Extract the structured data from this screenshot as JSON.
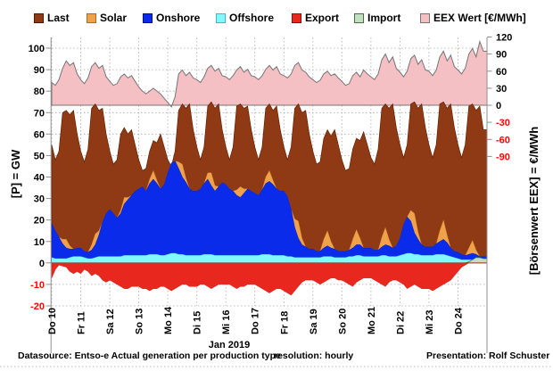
{
  "legend": {
    "items": [
      {
        "label": "Last",
        "color": "#8F3A14",
        "border": "#4e1a05"
      },
      {
        "label": "Solar",
        "color": "#F0A24A",
        "border": "#b06a1a"
      },
      {
        "label": "Onshore",
        "color": "#0B2BEA",
        "border": "#000d8a"
      },
      {
        "label": "Offshore",
        "color": "#80F8FC",
        "border": "#3fb9c9"
      },
      {
        "label": "Export",
        "color": "#E8281E",
        "border": "#8f0f08"
      },
      {
        "label": "Import",
        "color": "#C2DEC3",
        "border": "#46703F"
      },
      {
        "label": "EEX Wert [€/MWh]",
        "color": "#F5C0C4",
        "border": "#757575"
      }
    ]
  },
  "footer": {
    "datasource": "Datasource: Entso-e  Actual generation per production type",
    "month": "Jan 2019",
    "resolution": "resolution: hourly",
    "presentation": "Presentation:  Rolf Schuster"
  },
  "colors": {
    "grid": "#ABABAB",
    "axis": "#8F8F8F",
    "negative_tick": "#FF0000",
    "text": "#000000"
  },
  "chart_data": {
    "type": "area",
    "title": "",
    "x_step_hours": 3,
    "points_per_day": 8,
    "day_labels": [
      "Do 10",
      "Fr 11",
      "Sa 12",
      "So 13",
      "Mo 14",
      "Di 15",
      "Mi 16",
      "Do 17",
      "Fr 18",
      "Sa 19",
      "So 20",
      "Mo 21",
      "Di 22",
      "Mi 23",
      "Do 24"
    ],
    "x_caption": "Jan 2019",
    "left_axis": {
      "label": "[P] = GW",
      "min": -20,
      "max": 100,
      "tick_step": 10
    },
    "right_axis": {
      "label": "[Börsenwert EEX] = €/MWh",
      "min": -90,
      "max": 120,
      "ticks": [
        120,
        90,
        60,
        30,
        0,
        -30,
        -60,
        -90
      ]
    },
    "grid": true,
    "legend_position": "top",
    "stacking_note": "Offshore+Onshore+Solar stacked from 0 in front of Last; Export negative below 0; Import positive; EEX Wert plotted on right axis from 0 baseline",
    "series": [
      {
        "name": "Last",
        "axis": "left",
        "unit": "GW",
        "values": [
          55,
          48,
          52,
          70,
          71,
          69,
          71,
          60,
          52,
          47,
          53,
          72,
          74,
          71,
          72,
          60,
          52,
          46,
          48,
          60,
          63,
          60,
          62,
          55,
          48,
          43,
          44,
          52,
          57,
          56,
          60,
          54,
          48,
          45,
          52,
          71,
          74,
          72,
          74,
          62,
          54,
          48,
          54,
          73,
          75,
          72,
          74,
          62,
          54,
          48,
          54,
          73,
          74,
          72,
          73,
          62,
          54,
          48,
          54,
          72,
          74,
          71,
          73,
          62,
          54,
          48,
          54,
          72,
          74,
          70,
          71,
          60,
          52,
          46,
          47,
          58,
          62,
          59,
          62,
          55,
          48,
          43,
          44,
          53,
          58,
          57,
          61,
          55,
          49,
          46,
          53,
          72,
          74,
          72,
          74,
          63,
          55,
          49,
          55,
          74,
          75,
          72,
          74,
          63,
          55,
          49,
          55,
          74,
          75,
          72,
          74,
          63,
          55,
          49,
          55,
          73,
          74,
          71,
          73,
          62
        ]
      },
      {
        "name": "Onshore",
        "axis": "left",
        "unit": "GW",
        "values": [
          16,
          13,
          10,
          7,
          5,
          4,
          3.5,
          4,
          4,
          3,
          3,
          4,
          6,
          10,
          16,
          20,
          22,
          20,
          18,
          20,
          24,
          26,
          28,
          30,
          31,
          32,
          30,
          33,
          35,
          33,
          31,
          33,
          38,
          42,
          43,
          40,
          36,
          34,
          31,
          30,
          30,
          31,
          33,
          35,
          32,
          30,
          32,
          34,
          33,
          31,
          30,
          28,
          27,
          29,
          31,
          30,
          29,
          28,
          30,
          33,
          34,
          33,
          31,
          30,
          30,
          28,
          22,
          14,
          9,
          6,
          5,
          4,
          4,
          3,
          3,
          4,
          5,
          4,
          4,
          3,
          3,
          3,
          3,
          4,
          5,
          5,
          4,
          4,
          4,
          3,
          3,
          4,
          5,
          5,
          4,
          5,
          8,
          14,
          17,
          15,
          10,
          7,
          5,
          4,
          4,
          4,
          5,
          6,
          7,
          6,
          4,
          3,
          3,
          2.5,
          2,
          2.5,
          3,
          2.5,
          2,
          2
        ]
      },
      {
        "name": "Offshore",
        "axis": "left",
        "unit": "GW",
        "values": [
          2.5,
          2,
          2,
          2,
          2,
          2.5,
          3,
          3,
          3,
          2.5,
          2,
          2,
          2.5,
          3,
          3,
          3,
          3,
          3,
          3,
          3,
          3.5,
          3.5,
          3.5,
          3.5,
          3.5,
          3.5,
          3.5,
          4,
          4,
          4,
          3.5,
          3.5,
          4,
          4.5,
          4.5,
          4,
          4,
          3.5,
          3.5,
          3.5,
          3.5,
          3.5,
          4,
          4,
          4,
          3.5,
          3.5,
          3.5,
          3.5,
          3.5,
          3.5,
          3.5,
          3.5,
          3.5,
          3.5,
          3.5,
          3.5,
          3.5,
          4,
          4,
          4,
          3.5,
          3.5,
          3.5,
          3.5,
          3,
          3,
          2.5,
          2.5,
          2.5,
          2.5,
          2.5,
          2.5,
          2.5,
          2.5,
          3,
          3,
          3,
          2.5,
          2.5,
          2.5,
          2.5,
          3,
          3,
          3.5,
          3.5,
          3,
          3,
          3,
          3,
          3,
          3.5,
          3.5,
          3,
          3,
          3,
          3.5,
          4,
          4.5,
          4.5,
          4,
          4,
          3.5,
          3.5,
          3.5,
          3.5,
          4,
          4,
          4,
          3.5,
          3,
          2.5,
          2,
          1.5,
          1.5,
          1.5,
          1.5,
          1.5,
          1,
          1
        ]
      },
      {
        "name": "Solar",
        "axis": "left",
        "unit": "GW",
        "values": [
          0,
          0,
          0,
          2,
          4,
          1.5,
          0,
          0,
          0,
          0,
          0,
          2.5,
          5,
          2,
          0,
          0,
          0,
          0,
          0,
          1.5,
          3,
          1,
          0,
          0,
          0,
          0,
          0,
          2,
          4,
          1.5,
          0,
          0,
          0,
          0,
          0,
          3,
          6,
          2,
          0,
          0,
          0,
          0,
          0,
          3,
          6,
          2.5,
          0,
          0,
          0,
          0,
          0,
          2.5,
          5,
          2,
          0,
          0,
          0,
          0,
          0,
          3,
          5,
          2,
          0,
          0,
          0,
          0,
          0,
          4,
          8,
          3,
          0,
          0,
          0,
          0,
          0,
          4,
          7,
          3,
          0,
          0,
          0,
          0,
          0,
          4,
          7,
          3,
          0,
          0,
          0,
          0,
          0,
          4.5,
          8,
          3,
          0,
          0,
          0,
          0,
          0,
          5,
          9,
          3.5,
          0,
          0,
          0,
          0,
          0,
          5,
          9,
          3.5,
          0,
          0,
          0,
          0,
          0,
          3,
          6,
          2,
          0,
          0
        ]
      },
      {
        "name": "Export",
        "axis": "left",
        "unit": "GW",
        "values": [
          -7,
          -3,
          -1,
          -1.5,
          -2,
          -4,
          -5,
          -4,
          -5,
          -3,
          -4,
          -6,
          -5,
          -6,
          -8,
          -9,
          -8,
          -9,
          -10,
          -11,
          -12,
          -12,
          -11,
          -11,
          -11,
          -12,
          -12,
          -13,
          -12,
          -12,
          -11,
          -11,
          -12,
          -13,
          -12,
          -11,
          -10,
          -10,
          -11,
          -11,
          -11,
          -10,
          -10,
          -11,
          -12,
          -11,
          -10,
          -10,
          -10,
          -10,
          -11,
          -12,
          -11,
          -11,
          -10,
          -10,
          -10,
          -11,
          -12,
          -13,
          -14,
          -13,
          -12,
          -12,
          -13,
          -14,
          -15,
          -13,
          -11,
          -9,
          -8,
          -8,
          -8,
          -9,
          -10,
          -9,
          -8,
          -7,
          -7,
          -8,
          -8,
          -9,
          -10,
          -11,
          -9,
          -8,
          -7,
          -7,
          -7,
          -8,
          -9,
          -10,
          -11,
          -9,
          -8,
          -8,
          -9,
          -10,
          -12,
          -11,
          -10,
          -11,
          -12,
          -12,
          -12,
          -13,
          -12,
          -11,
          -10,
          -9,
          -8,
          -6,
          -4,
          -2,
          -1,
          0,
          0,
          0,
          0,
          0
        ]
      },
      {
        "name": "Import",
        "axis": "left",
        "unit": "GW",
        "values": [
          0,
          0,
          0,
          0,
          0,
          0,
          0,
          0,
          0,
          0,
          0,
          0,
          0,
          0,
          0,
          0,
          0,
          0,
          0,
          0,
          0,
          0,
          0,
          0,
          0,
          0,
          0,
          0,
          0,
          0,
          0,
          0,
          0,
          0,
          0,
          0,
          0,
          0,
          0,
          0,
          0,
          0,
          0,
          0,
          0,
          0,
          0,
          0,
          0,
          0,
          0,
          0,
          0,
          0,
          0,
          0,
          0,
          0,
          0,
          0,
          0,
          0,
          0,
          0,
          0,
          0,
          0,
          0,
          0,
          0,
          0,
          0,
          0,
          0,
          0,
          0,
          0,
          0,
          0,
          0,
          0,
          0,
          0,
          0,
          0,
          0,
          0,
          0,
          0,
          0,
          0,
          0,
          0,
          0,
          0,
          0,
          0,
          0,
          0,
          0,
          0,
          0,
          0,
          0,
          0,
          0,
          0,
          0,
          0,
          0,
          0,
          0,
          0,
          0,
          0,
          0.5,
          1.5,
          2.5,
          2.5,
          2
        ]
      },
      {
        "name": "EEX Wert",
        "axis": "right",
        "unit": "€/MWh",
        "values": [
          40,
          35,
          45,
          65,
          78,
          70,
          75,
          55,
          45,
          38,
          48,
          68,
          75,
          65,
          70,
          50,
          42,
          35,
          38,
          50,
          55,
          48,
          52,
          42,
          32,
          25,
          20,
          25,
          30,
          25,
          20,
          12,
          5,
          -3,
          15,
          55,
          62,
          52,
          58,
          48,
          45,
          40,
          50,
          65,
          70,
          60,
          65,
          52,
          50,
          45,
          52,
          62,
          68,
          58,
          63,
          52,
          50,
          45,
          52,
          63,
          70,
          62,
          68,
          55,
          52,
          48,
          55,
          70,
          75,
          62,
          58,
          50,
          45,
          40,
          44,
          55,
          60,
          52,
          55,
          48,
          42,
          35,
          38,
          52,
          58,
          50,
          62,
          55,
          50,
          45,
          55,
          80,
          90,
          75,
          85,
          65,
          58,
          50,
          60,
          82,
          88,
          72,
          80,
          62,
          60,
          52,
          62,
          85,
          95,
          78,
          88,
          68,
          62,
          55,
          65,
          90,
          100,
          85,
          112,
          95
        ]
      }
    ]
  }
}
